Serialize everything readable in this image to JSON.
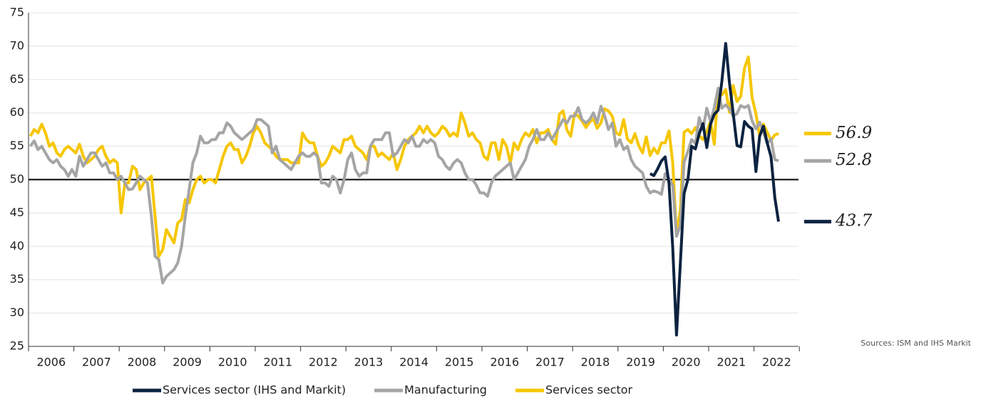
{
  "chart_data": {
    "type": "line",
    "x": [
      "2006",
      "2006",
      "2006",
      "2006",
      "2006",
      "2006",
      "2006",
      "2006",
      "2006",
      "2006",
      "2006",
      "2006",
      "2007",
      "2007",
      "2007",
      "2007",
      "2007",
      "2007",
      "2007",
      "2007",
      "2007",
      "2007",
      "2007",
      "2007",
      "2008",
      "2008",
      "2008",
      "2008",
      "2008",
      "2008",
      "2008",
      "2008",
      "2008",
      "2008",
      "2008",
      "2008",
      "2009",
      "2009",
      "2009",
      "2009",
      "2009",
      "2009",
      "2009",
      "2009",
      "2009",
      "2009",
      "2009",
      "2009",
      "2010",
      "2010",
      "2010",
      "2010",
      "2010",
      "2010",
      "2010",
      "2010",
      "2010",
      "2010",
      "2010",
      "2010",
      "2011",
      "2011",
      "2011",
      "2011",
      "2011",
      "2011",
      "2011",
      "2011",
      "2011",
      "2011",
      "2011",
      "2011",
      "2012",
      "2012",
      "2012",
      "2012",
      "2012",
      "2012",
      "2012",
      "2012",
      "2012",
      "2012",
      "2012",
      "2012",
      "2013",
      "2013",
      "2013",
      "2013",
      "2013",
      "2013",
      "2013",
      "2013",
      "2013",
      "2013",
      "2013",
      "2013",
      "2014",
      "2014",
      "2014",
      "2014",
      "2014",
      "2014",
      "2014",
      "2014",
      "2014",
      "2014",
      "2014",
      "2014",
      "2015",
      "2015",
      "2015",
      "2015",
      "2015",
      "2015",
      "2015",
      "2015",
      "2015",
      "2015",
      "2015",
      "2015",
      "2016",
      "2016",
      "2016",
      "2016",
      "2016",
      "2016",
      "2016",
      "2016",
      "2016",
      "2016",
      "2016",
      "2016",
      "2017",
      "2017",
      "2017",
      "2017",
      "2017",
      "2017",
      "2017",
      "2017",
      "2017",
      "2017",
      "2017",
      "2017",
      "2018",
      "2018",
      "2018",
      "2018",
      "2018",
      "2018",
      "2018",
      "2018",
      "2018",
      "2018",
      "2018",
      "2018",
      "2019",
      "2019",
      "2019",
      "2019",
      "2019",
      "2019",
      "2019",
      "2019",
      "2019",
      "2019",
      "2019",
      "2019",
      "2020",
      "2020",
      "2020",
      "2020",
      "2020",
      "2020",
      "2020",
      "2020",
      "2020",
      "2020",
      "2020",
      "2020",
      "2021",
      "2021",
      "2021",
      "2021",
      "2021",
      "2021",
      "2021",
      "2021",
      "2021",
      "2021",
      "2021",
      "2021",
      "2022",
      "2022",
      "2022",
      "2022",
      "2022",
      "2022",
      "2022"
    ],
    "series": [
      {
        "name": "Services sector (IHS and Markit)",
        "color": "#0c2340",
        "values": [
          null,
          null,
          null,
          null,
          null,
          null,
          null,
          null,
          null,
          null,
          null,
          null,
          null,
          null,
          null,
          null,
          null,
          null,
          null,
          null,
          null,
          null,
          null,
          null,
          null,
          null,
          null,
          null,
          null,
          null,
          null,
          null,
          null,
          null,
          null,
          null,
          null,
          null,
          null,
          null,
          null,
          null,
          null,
          null,
          null,
          null,
          null,
          null,
          null,
          null,
          null,
          null,
          null,
          null,
          null,
          null,
          null,
          null,
          null,
          null,
          null,
          null,
          null,
          null,
          null,
          null,
          null,
          null,
          null,
          null,
          null,
          null,
          null,
          null,
          null,
          null,
          null,
          null,
          null,
          null,
          null,
          null,
          null,
          null,
          null,
          null,
          null,
          null,
          null,
          null,
          null,
          null,
          null,
          null,
          null,
          null,
          null,
          null,
          null,
          null,
          null,
          null,
          null,
          null,
          null,
          null,
          null,
          null,
          null,
          null,
          null,
          null,
          null,
          null,
          null,
          null,
          null,
          null,
          null,
          null,
          null,
          null,
          null,
          null,
          null,
          null,
          null,
          null,
          null,
          null,
          null,
          null,
          null,
          null,
          null,
          null,
          null,
          null,
          null,
          null,
          null,
          null,
          null,
          null,
          null,
          null,
          null,
          null,
          null,
          null,
          null,
          null,
          null,
          null,
          null,
          null,
          null,
          null,
          null,
          null,
          null,
          null,
          null,
          null,
          50.9,
          50.6,
          51.6,
          52.8,
          53.4,
          49.4,
          39.8,
          26.7,
          37.5,
          47.9,
          50,
          55,
          54.6,
          56.9,
          58.4,
          54.8,
          58.3,
          59.8,
          60.4,
          64.7,
          70.4,
          64.6,
          59.9,
          55.1,
          54.9,
          58.7,
          58,
          57.6,
          51.2,
          56.5,
          58,
          55.5,
          53.4,
          47.3,
          43.7
        ]
      },
      {
        "name": "Manufacturing",
        "color": "#a5a5a5",
        "values": [
          55,
          55.8,
          54.5,
          55,
          54,
          53,
          52.5,
          53,
          52,
          51.5,
          50.5,
          51.5,
          50.5,
          53.5,
          52,
          53,
          54,
          54,
          53,
          52,
          52.5,
          51,
          51,
          50,
          50.5,
          49.5,
          48.5,
          48.6,
          49.5,
          50.5,
          50,
          49.5,
          44.5,
          38.5,
          38,
          34.5,
          35.5,
          36,
          36.5,
          37.5,
          40,
          44.5,
          48.5,
          52.5,
          54,
          56.5,
          55.5,
          55.5,
          56,
          56,
          57,
          57,
          58.5,
          58,
          57,
          56.5,
          56,
          56.5,
          57,
          57.5,
          59,
          59,
          58.5,
          58,
          54,
          55,
          53,
          52.5,
          52,
          51.5,
          52.5,
          53.5,
          54,
          53.5,
          53.5,
          54,
          53.5,
          49.5,
          49.5,
          49,
          50.5,
          50,
          48,
          50,
          53,
          54,
          51.5,
          50.5,
          51,
          51,
          55,
          56,
          56,
          56,
          57,
          57,
          53.5,
          54,
          55,
          56,
          55.5,
          56.5,
          55,
          55,
          56,
          55.5,
          56,
          55.5,
          53.5,
          53,
          52,
          51.5,
          52.5,
          53,
          52.5,
          51,
          50,
          50,
          49.2,
          48,
          48,
          47.5,
          49.5,
          50.5,
          51,
          51.5,
          52,
          52.5,
          50,
          51,
          52,
          53,
          55,
          56,
          57.5,
          56,
          56,
          57,
          56,
          57,
          58,
          59,
          58.5,
          59.5,
          59.5,
          60.8,
          59,
          58.5,
          59,
          60,
          58.5,
          61,
          59.5,
          57.5,
          58.5,
          55,
          56,
          54.5,
          55,
          53,
          52,
          51.5,
          51,
          49,
          48,
          48.3,
          48.1,
          47.8,
          50.9,
          50.1,
          49.1,
          41.5,
          43.1,
          52.6,
          54.2,
          56,
          55.4,
          59.3,
          57.5,
          60.7,
          58.7,
          60.8,
          63.7,
          60.7,
          61.2,
          60.6,
          59.5,
          59.9,
          61.1,
          60.8,
          61.1,
          58.8,
          57.6,
          58.6,
          57.1,
          55.4,
          56.1,
          53,
          52.8
        ]
      },
      {
        "name": "Services sector",
        "color": "#f6c600",
        "values": [
          56.5,
          57.5,
          57,
          58.3,
          57,
          55,
          55.5,
          54,
          53.5,
          54.5,
          55,
          54.5,
          54,
          55.3,
          53.5,
          52.5,
          53,
          53.5,
          54.5,
          55,
          53.5,
          52.5,
          53,
          52.5,
          45,
          49.5,
          49.5,
          52,
          51.5,
          48.5,
          49.5,
          50,
          50.5,
          44.5,
          38.5,
          39.5,
          42.5,
          41.5,
          40.5,
          43.5,
          44,
          47,
          46.5,
          48.5,
          50,
          50.5,
          49.5,
          50,
          50,
          49.5,
          51.5,
          53.5,
          55,
          55.5,
          54.5,
          54.5,
          52.5,
          53.5,
          55,
          57,
          58,
          57,
          55.5,
          55,
          54.5,
          53.5,
          53,
          53,
          53,
          52.5,
          52.5,
          52.5,
          57,
          56,
          55.5,
          55.5,
          53.5,
          52,
          52.5,
          53.5,
          55,
          54.5,
          54,
          56,
          56,
          56.5,
          55,
          54.5,
          54,
          53,
          55,
          55,
          53.5,
          54,
          53.5,
          53,
          54,
          51.5,
          53,
          55,
          56,
          56.5,
          57,
          58,
          57,
          58,
          57,
          56.5,
          57,
          58,
          57.5,
          56.5,
          57,
          56.5,
          60,
          58.5,
          56.5,
          57,
          56,
          55.5,
          53.5,
          53,
          55.5,
          55.5,
          53,
          56,
          55,
          52.5,
          55.5,
          54.5,
          56,
          57,
          56.5,
          57.5,
          55.5,
          57,
          57,
          57.5,
          56,
          55.3,
          59.8,
          60.3,
          57.4,
          56.5,
          59.9,
          59.5,
          58.8,
          57.8,
          58.6,
          59.1,
          57.7,
          58.5,
          60.6,
          60.3,
          59.5,
          57,
          56.7,
          59,
          56.1,
          55.5,
          56.9,
          55.1,
          54,
          56.4,
          53.6,
          54.7,
          53.9,
          55.5,
          55.5,
          57.3,
          52.5,
          41.8,
          45.4,
          57.1,
          57.5,
          56.9,
          57.8,
          56.6,
          56,
          57.2,
          58.7,
          55.3,
          63.7,
          62.7,
          63.5,
          60.1,
          64.1,
          61.7,
          62.5,
          66.7,
          68.4,
          62.3,
          59.9,
          56.5,
          58.3,
          57.1,
          55.9,
          56.7,
          56.9
        ]
      }
    ],
    "ylim": [
      25,
      75
    ],
    "yticks": [
      25,
      30,
      35,
      40,
      45,
      50,
      55,
      60,
      65,
      70,
      75
    ],
    "reference_line": 50,
    "grid": true,
    "legend": "bottom",
    "source": "Sources: ISM and IHS Markit"
  }
}
